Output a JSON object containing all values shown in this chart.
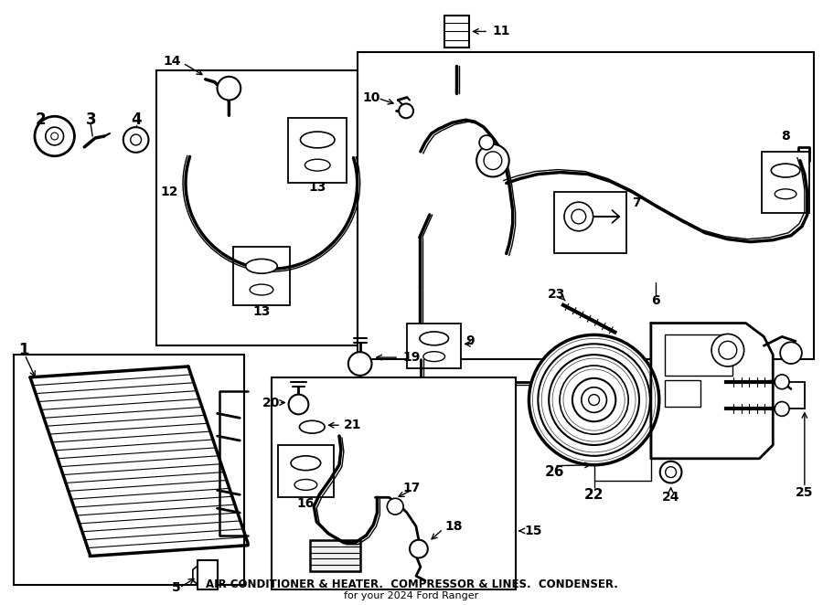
{
  "title": "AIR CONDITIONER & HEATER.  COMPRESSOR & LINES.  CONDENSER.",
  "subtitle": "for your 2024 Ford Ranger",
  "bg_color": "#ffffff",
  "line_color": "#000000",
  "fig_width": 9.0,
  "fig_height": 6.62,
  "dpi": 100
}
